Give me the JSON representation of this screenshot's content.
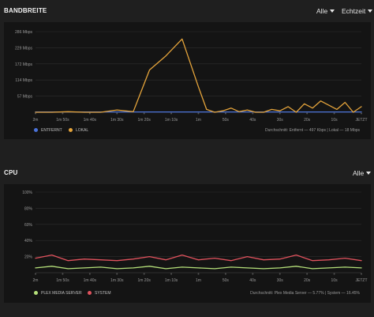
{
  "bandwidth": {
    "title": "BANDBREITE",
    "filter": "Alle",
    "period": "Echtzeit",
    "legend": {
      "remote": "ENTFERNT",
      "local": "LOKAL"
    },
    "average": "Durchschnitt: Entfernt — 497 Kbps | Lokal — 18 Mbps",
    "colors": {
      "remote": "#4a72d9",
      "local": "#e5a43b"
    }
  },
  "cpu": {
    "title": "CPU",
    "filter": "Alle",
    "legend": {
      "plex": "PLEX MEDIA SERVER",
      "system": "SYSTEM"
    },
    "average": "Durchschnitt: Plex Media Server — 5.77% | System — 16.45%",
    "colors": {
      "plex": "#b5e07a",
      "system": "#e0525d"
    }
  },
  "chart_data": [
    {
      "type": "line",
      "y_ticks": [
        "286 Mbps",
        "229 Mbps",
        "172 Mbps",
        "114 Mbps",
        "57 Mbps"
      ],
      "x_ticks": [
        "2m",
        "1m 50s",
        "1m 40s",
        "1m 30s",
        "1m 20s",
        "1m 10s",
        "1m",
        "50s",
        "40s",
        "30s",
        "20s",
        "10s",
        "JETZT"
      ],
      "ylim": [
        0,
        286
      ],
      "x": [
        -120,
        -114,
        -108,
        -102,
        -96,
        -90,
        -84,
        -78,
        -72,
        -66,
        -60,
        -57,
        -54,
        -51,
        -48,
        -45,
        -42,
        -39,
        -36,
        -33,
        -30,
        -27,
        -24,
        -21,
        -18,
        -15,
        -12,
        -9,
        -6,
        -3,
        0
      ],
      "series": [
        {
          "name": "ENTFERNT",
          "values": [
            1,
            1,
            1,
            1,
            1,
            1,
            1,
            1,
            1,
            1,
            1,
            1,
            1,
            1,
            1,
            1,
            1,
            1,
            1,
            1,
            1,
            1,
            1,
            1,
            1,
            1,
            1,
            1,
            1,
            1,
            1
          ]
        },
        {
          "name": "LOKAL",
          "values": [
            0,
            0,
            2,
            0,
            0,
            8,
            2,
            150,
            200,
            260,
            90,
            10,
            0,
            5,
            15,
            2,
            8,
            0,
            0,
            10,
            5,
            20,
            0,
            30,
            15,
            40,
            25,
            10,
            35,
            0,
            20
          ]
        }
      ]
    },
    {
      "type": "line",
      "y_ticks": [
        "100%",
        "80%",
        "60%",
        "40%",
        "20%"
      ],
      "x_ticks": [
        "2m",
        "1m 50s",
        "1m 40s",
        "1m 30s",
        "1m 20s",
        "1m 10s",
        "1m",
        "50s",
        "40s",
        "30s",
        "20s",
        "10s",
        "JETZT"
      ],
      "ylim": [
        0,
        100
      ],
      "x": [
        -120,
        -114,
        -108,
        -102,
        -96,
        -90,
        -84,
        -78,
        -72,
        -66,
        -60,
        -54,
        -48,
        -42,
        -36,
        -30,
        -24,
        -18,
        -12,
        -6,
        0
      ],
      "series": [
        {
          "name": "PLEX MEDIA SERVER",
          "values": [
            6,
            8,
            5,
            6,
            7,
            5,
            6,
            8,
            5,
            7,
            6,
            5,
            7,
            6,
            5,
            6,
            8,
            5,
            6,
            7,
            6
          ]
        },
        {
          "name": "SYSTEM",
          "values": [
            18,
            22,
            15,
            17,
            16,
            15,
            17,
            20,
            16,
            22,
            16,
            18,
            15,
            20,
            16,
            17,
            22,
            15,
            16,
            18,
            15
          ]
        }
      ]
    }
  ]
}
